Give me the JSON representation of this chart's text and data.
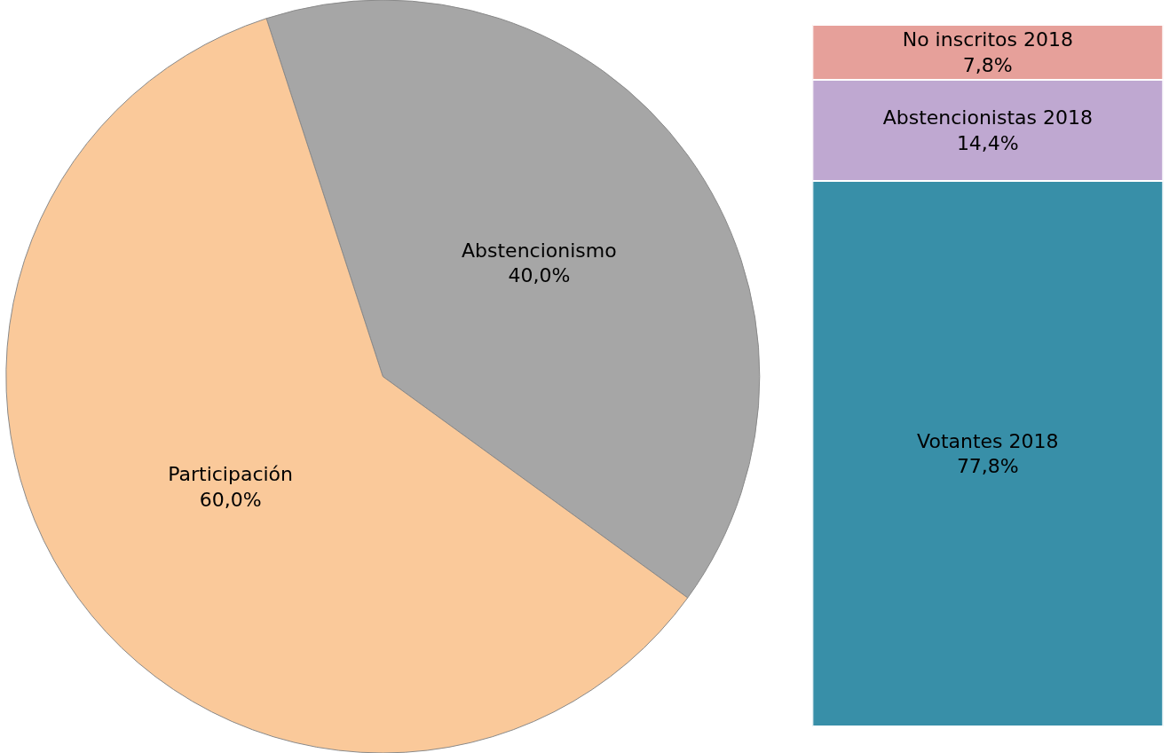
{
  "chart_data": [
    {
      "type": "pie",
      "categories": [
        "Abstencionismo",
        "Participación"
      ],
      "values": [
        40.0,
        60.0
      ],
      "colors": [
        "#a6a6a6",
        "#fac99a"
      ],
      "value_labels": [
        "40,0%",
        "60,0%"
      ],
      "legend": false
    },
    {
      "type": "bar",
      "stacked": true,
      "categories": [
        null
      ],
      "legend": false,
      "tick_labels": false,
      "series": [
        {
          "name": "Votantes 2018",
          "color": "#388fa8",
          "values": [
            77.8
          ],
          "value_labels": [
            "77,8%"
          ]
        },
        {
          "name": "Abstencionistas 2018",
          "color": "#bfa8d1",
          "values": [
            14.4
          ],
          "value_labels": [
            "14,4%"
          ]
        },
        {
          "name": "No inscritos 2018",
          "color": "#e6a09a",
          "values": [
            7.8
          ],
          "value_labels": [
            "7,8%"
          ]
        }
      ]
    }
  ]
}
